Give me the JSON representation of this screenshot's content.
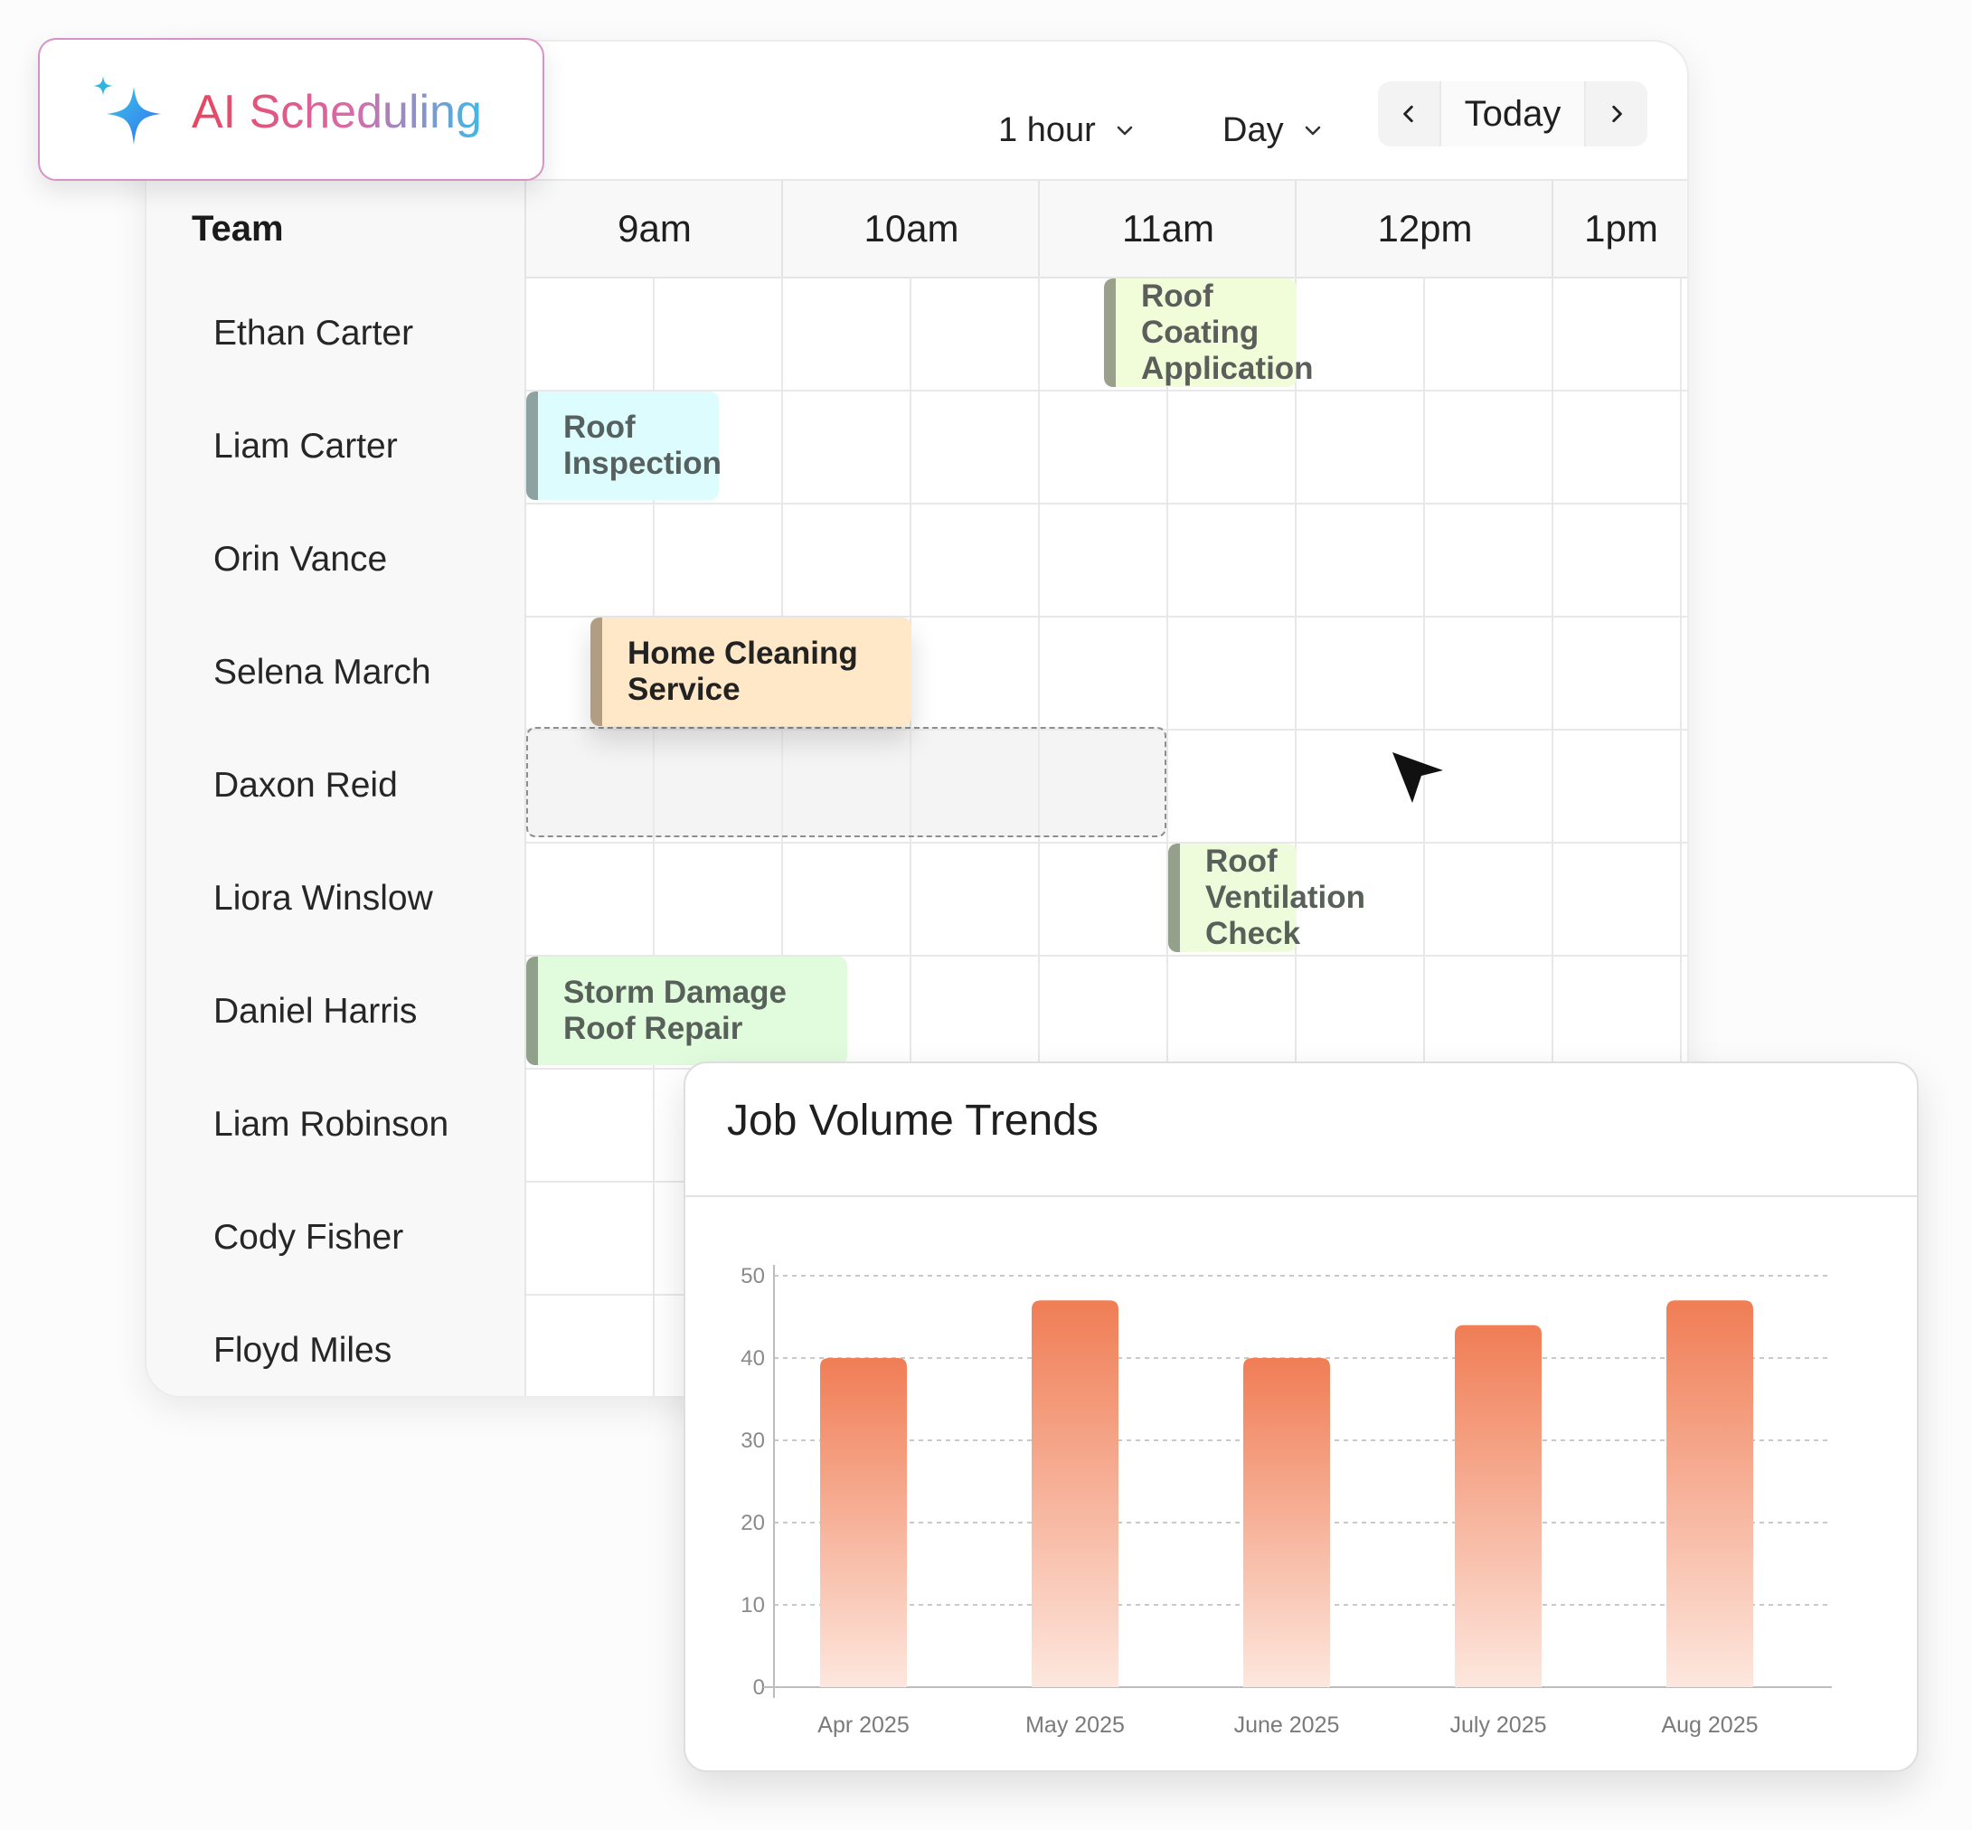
{
  "ai_badge": {
    "label": "AI Scheduling"
  },
  "toolbar": {
    "interval": "1 hour",
    "view": "Day",
    "today": "Today"
  },
  "header": {
    "team": "Team",
    "hours": [
      "9am",
      "10am",
      "11am",
      "12pm",
      "1pm"
    ]
  },
  "team": [
    "Ethan Carter",
    "Liam Carter",
    "Orin Vance",
    "Selena March",
    "Daxon Reid",
    "Liora Winslow",
    "Daniel Harris",
    "Liam Robinson",
    "Cody Fisher",
    "Floyd Miles"
  ],
  "events": [
    {
      "title": "Roof Coating Application",
      "member": "Ethan Carter",
      "start": "11:15",
      "end": "12:00",
      "bg": "#f0fdd8",
      "accent": "#9aa08c",
      "text": "#5b5e5a"
    },
    {
      "title": "Roof Inspection",
      "member": "Liam Carter",
      "start": "9:00",
      "end": "9:45",
      "bg": "#dcfcfd",
      "accent": "#8ca3a2",
      "text": "#56605f"
    },
    {
      "title": "Home Cleaning Service",
      "member": "Selena March",
      "start": "9:15",
      "end": "10:30",
      "bg": "#fee8c8",
      "accent": "#b19e82",
      "text": "#222222"
    },
    {
      "title": "Roof Ventilation Check",
      "member": "Liora Winslow",
      "start": "11:30",
      "end": "12:00",
      "bg": "#eefcdb",
      "accent": "#94a08b",
      "text": "#58605a"
    },
    {
      "title": "Storm Damage Roof Repair",
      "member": "Daniel Harris",
      "start": "9:00",
      "end": "10:15",
      "bg": "#e0fcdd",
      "accent": "#8fa08b",
      "text": "#58605a"
    }
  ],
  "chart_card": {
    "title": "Job Volume Trends"
  },
  "chart_data": {
    "type": "bar",
    "title": "Job Volume Trends",
    "categories": [
      "Apr 2025",
      "May 2025",
      "June 2025",
      "July 2025",
      "Aug 2025"
    ],
    "values": [
      40,
      47,
      40,
      44,
      47
    ],
    "ylim": [
      0,
      50
    ],
    "yticks": [
      0,
      10,
      20,
      30,
      40,
      50
    ],
    "grid": true,
    "bar_color_top": "#f07d55",
    "bar_color_bottom": "#fde7de"
  }
}
